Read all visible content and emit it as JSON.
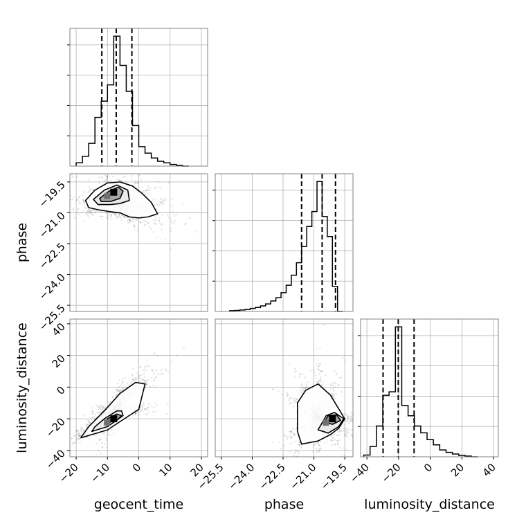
{
  "chart_data": {
    "type": "corner",
    "grid": true,
    "parameters": [
      {
        "name": "geocent_time",
        "label": "geocent_time",
        "lim": [
          -22,
          22
        ],
        "ticks": [
          "−20",
          "−10",
          "0",
          "10",
          "20"
        ],
        "tick_values": [
          -20,
          -10,
          0,
          10,
          20
        ]
      },
      {
        "name": "phase",
        "label": "phase",
        "lim": [
          -25.8,
          -19.1
        ],
        "ticks": [
          "−25.5",
          "−24.0",
          "−22.5",
          "−21.0",
          "−19.5"
        ],
        "tick_values": [
          -25.5,
          -24.0,
          -22.5,
          -21.0,
          -19.5
        ]
      },
      {
        "name": "luminosity_distance",
        "label": "luminosity_distance",
        "lim": [
          -44,
          43
        ],
        "ticks": [
          "−40",
          "−20",
          "0",
          "20",
          "40"
        ],
        "tick_values": [
          -40,
          -20,
          0,
          20,
          40
        ]
      }
    ],
    "histograms": [
      {
        "parameter": "geocent_time",
        "bin_edges": [
          -20,
          -18,
          -16,
          -14,
          -12,
          -10,
          -8,
          -6,
          -4,
          -2,
          0,
          2,
          4,
          6,
          8,
          10,
          12,
          14,
          16
        ],
        "counts": [
          2,
          6,
          14,
          30,
          40,
          50,
          80,
          62,
          46,
          25,
          12,
          8,
          5,
          3,
          2,
          1,
          0.5,
          0
        ],
        "quantiles": [
          -11.8,
          -7.2,
          -2.2
        ]
      },
      {
        "parameter": "phase",
        "bin_edges": [
          -25.1,
          -24.85,
          -24.6,
          -24.35,
          -24.1,
          -23.85,
          -23.6,
          -23.35,
          -23.1,
          -22.85,
          -22.6,
          -22.35,
          -22.1,
          -21.85,
          -21.6,
          -21.35,
          -21.1,
          -20.85,
          -20.6,
          -20.35,
          -20.1,
          -19.85,
          -19.6
        ],
        "counts": [
          0.3,
          0.4,
          0.6,
          0.8,
          1.2,
          1.6,
          2.2,
          3.0,
          4.2,
          5.5,
          7.5,
          10.5,
          14.5,
          19.5,
          26,
          34,
          40,
          52,
          38,
          30,
          10,
          0
        ],
        "quantiles": [
          -21.6,
          -20.6,
          -19.95
        ]
      },
      {
        "parameter": "luminosity_distance",
        "bin_edges": [
          -42,
          -38,
          -34,
          -30,
          -26,
          -22,
          -18,
          -14,
          -10,
          -6,
          -2,
          2,
          6,
          10,
          14,
          18,
          22,
          26,
          30
        ],
        "counts": [
          0.5,
          3,
          9,
          18,
          19,
          38,
          15,
          12,
          9,
          7,
          5,
          3.5,
          2,
          1.3,
          0.8,
          0.4,
          0.2,
          0
        ],
        "quantiles": [
          -29.8,
          -20.2,
          -10.2
        ]
      }
    ],
    "contour_panels": [
      {
        "x": "geocent_time",
        "y": "phase",
        "density_center": [
          -8,
          -20.0
        ],
        "contours": [
          [
            [
              -17,
              -20.4
            ],
            [
              -14,
              -19.9
            ],
            [
              -10,
              -19.55
            ],
            [
              -6,
              -19.5
            ],
            [
              -2,
              -19.7
            ],
            [
              1,
              -20.05
            ],
            [
              4,
              -20.5
            ],
            [
              6,
              -21.05
            ],
            [
              3,
              -21.2
            ],
            [
              0,
              -21.25
            ],
            [
              -3,
              -21.2
            ],
            [
              -6,
              -21.0
            ],
            [
              -9,
              -20.95
            ],
            [
              -13,
              -20.85
            ],
            [
              -16,
              -20.75
            ]
          ],
          [
            [
              -14.5,
              -20.35
            ],
            [
              -11,
              -19.9
            ],
            [
              -7,
              -19.65
            ],
            [
              -3.5,
              -19.9
            ],
            [
              -3,
              -20.4
            ],
            [
              -6,
              -20.55
            ],
            [
              -9,
              -20.6
            ],
            [
              -13,
              -20.6
            ]
          ],
          [
            [
              -12.5,
              -20.3
            ],
            [
              -9.5,
              -19.95
            ],
            [
              -6.5,
              -19.75
            ],
            [
              -5,
              -19.95
            ],
            [
              -6,
              -20.3
            ],
            [
              -9,
              -20.45
            ],
            [
              -12,
              -20.45
            ]
          ]
        ]
      },
      {
        "x": "geocent_time",
        "y": "luminosity_distance",
        "density_center": [
          -8,
          -20
        ],
        "contours": [
          [
            [
              -18.5,
              -32
            ],
            [
              -10,
              -27
            ],
            [
              0,
              -14
            ],
            [
              2,
              2
            ],
            [
              -1,
              3
            ],
            [
              -6,
              -4
            ],
            [
              -11,
              -15
            ],
            [
              -16,
              -25
            ]
          ],
          [
            [
              -15,
              -28
            ],
            [
              -10,
              -25
            ],
            [
              -5,
              -18
            ],
            [
              -5.5,
              -15
            ],
            [
              -7,
              -15
            ],
            [
              -11,
              -20
            ],
            [
              -14,
              -25
            ]
          ],
          [
            [
              -11,
              -23
            ],
            [
              -7,
              -21
            ],
            [
              -5.5,
              -18
            ],
            [
              -7,
              -17
            ],
            [
              -10,
              -20
            ]
          ]
        ]
      },
      {
        "x": "phase",
        "y": "luminosity_distance",
        "density_center": [
          -20.1,
          -20
        ],
        "contours": [
          [
            [
              -21.8,
              -10
            ],
            [
              -21.4,
              -2
            ],
            [
              -20.8,
              2
            ],
            [
              -20.2,
              -5
            ],
            [
              -19.5,
              -20
            ],
            [
              -19.8,
              -26
            ],
            [
              -20.2,
              -30
            ],
            [
              -20.8,
              -34
            ],
            [
              -21.6,
              -36
            ],
            [
              -21.8,
              -28
            ]
          ],
          [
            [
              -20.8,
              -27
            ],
            [
              -20.4,
              -18
            ],
            [
              -20.0,
              -16
            ],
            [
              -19.55,
              -20
            ],
            [
              -19.8,
              -25
            ],
            [
              -20.3,
              -29
            ]
          ],
          [
            [
              -20.5,
              -22
            ],
            [
              -20.3,
              -18
            ],
            [
              -19.9,
              -17.5
            ],
            [
              -19.7,
              -21
            ],
            [
              -20.1,
              -23.5
            ]
          ]
        ]
      }
    ]
  }
}
